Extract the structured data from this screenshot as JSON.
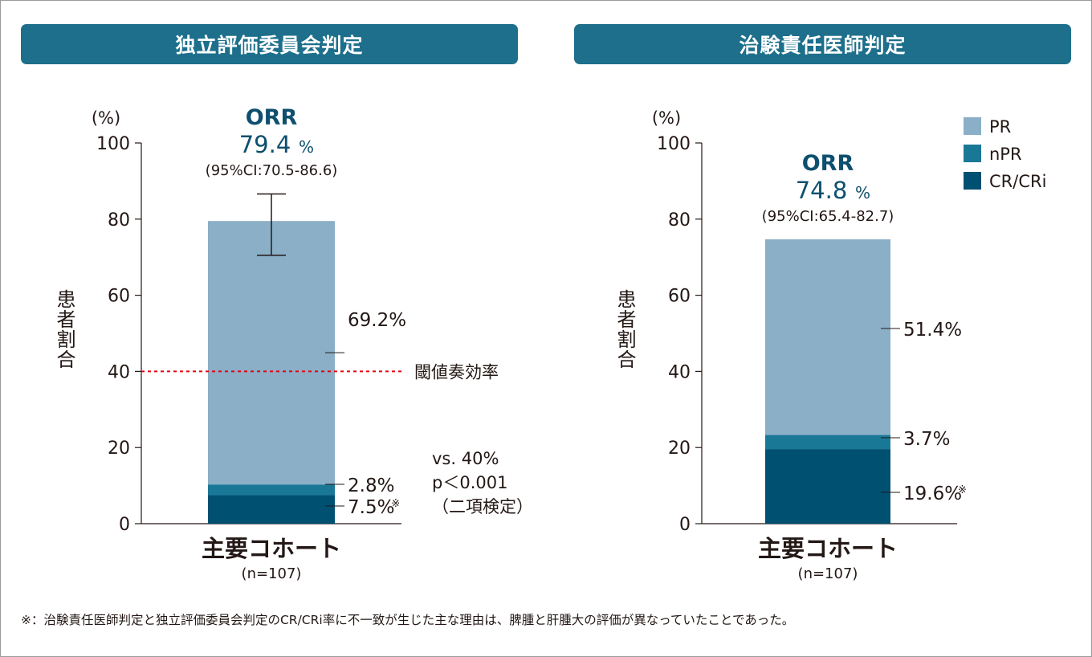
{
  "headers": {
    "left": "独立評価委員会判定",
    "right": "治験責任医師判定"
  },
  "footnote": "※：治験責任医師判定と独立評価委員会判定のCR/CRi率に不一致が生じた主な理由は、脾腫と肝腫大の評価が異なっていたことであった。",
  "colors": {
    "header_bg": "#1d6f8b",
    "PR": "#8aafc7",
    "nPR": "#1a7897",
    "CR/CRi": "#005072",
    "orr_text": "#0d4f6e",
    "threshold_line": "#e60012"
  },
  "chart_data": [
    {
      "type": "bar",
      "stacked": true,
      "panel_title": "独立評価委員会判定",
      "categories": [
        "主要コホート"
      ],
      "category_sub": "(n=107)",
      "y_unit": "(%)",
      "ylabel": "患者割合",
      "ylim": [
        0,
        100
      ],
      "yticks": [
        0,
        20,
        40,
        60,
        80,
        100
      ],
      "grid": false,
      "series": [
        {
          "name": "CR/CRi",
          "values": [
            7.5
          ],
          "label": "7.5%",
          "mark": "※"
        },
        {
          "name": "nPR",
          "values": [
            2.8
          ],
          "label": "2.8%",
          "mark": ""
        },
        {
          "name": "PR",
          "values": [
            69.2
          ],
          "label": "69.2%",
          "mark": ""
        }
      ],
      "orr": {
        "title": "ORR",
        "value": "79.4",
        "unit": "%",
        "ci": "(95%CI:70.5-86.6)"
      },
      "error_bar": {
        "low": 70.5,
        "high": 86.6
      },
      "threshold": {
        "value": 40,
        "label": "閾値奏効率"
      },
      "stat_note": [
        "vs. 40%",
        "p＜0.001",
        "（二項検定）"
      ]
    },
    {
      "type": "bar",
      "stacked": true,
      "panel_title": "治験責任医師判定",
      "categories": [
        "主要コホート"
      ],
      "category_sub": "(n=107)",
      "y_unit": "(%)",
      "ylabel": "患者割合",
      "ylim": [
        0,
        100
      ],
      "yticks": [
        0,
        20,
        40,
        60,
        80,
        100
      ],
      "grid": false,
      "series": [
        {
          "name": "CR/CRi",
          "values": [
            19.6
          ],
          "label": "19.6%",
          "mark": "※"
        },
        {
          "name": "nPR",
          "values": [
            3.7
          ],
          "label": "3.7%",
          "mark": ""
        },
        {
          "name": "PR",
          "values": [
            51.4
          ],
          "label": "51.4%",
          "mark": ""
        }
      ],
      "orr": {
        "title": "ORR",
        "value": "74.8",
        "unit": "%",
        "ci": "(95%CI:65.4-82.7)"
      },
      "legend": {
        "placement": "top-right",
        "order": [
          "PR",
          "nPR",
          "CR/CRi"
        ]
      }
    }
  ]
}
